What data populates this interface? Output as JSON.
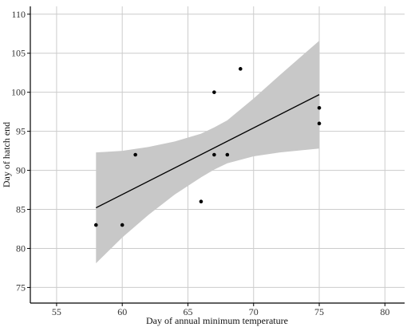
{
  "chart_data": {
    "type": "scatter",
    "title": "",
    "xlabel": "Day of annual minimum temperature",
    "ylabel": "Day of hatch end",
    "xlim": [
      53,
      81.5
    ],
    "ylim": [
      73,
      111
    ],
    "xticks": [
      55,
      60,
      65,
      70,
      75,
      80
    ],
    "yticks": [
      75,
      80,
      85,
      90,
      95,
      100,
      105,
      110
    ],
    "grid": true,
    "points": [
      {
        "x": 58,
        "y": 83
      },
      {
        "x": 60,
        "y": 83
      },
      {
        "x": 61,
        "y": 92
      },
      {
        "x": 66,
        "y": 86
      },
      {
        "x": 67,
        "y": 100
      },
      {
        "x": 67,
        "y": 92
      },
      {
        "x": 68,
        "y": 92
      },
      {
        "x": 69,
        "y": 103
      },
      {
        "x": 75,
        "y": 98
      },
      {
        "x": 75,
        "y": 96
      }
    ],
    "fit_line": {
      "x": [
        58,
        75
      ],
      "y": [
        85.2,
        99.7
      ]
    },
    "confidence_band": {
      "x": [
        58,
        60,
        62,
        64,
        66,
        67,
        68,
        70,
        72,
        75
      ],
      "lower": [
        78.1,
        81.4,
        84.3,
        86.9,
        89.1,
        90.1,
        90.9,
        91.8,
        92.3,
        92.8
      ],
      "upper": [
        92.3,
        92.5,
        93.0,
        93.7,
        94.7,
        95.5,
        96.4,
        99.2,
        102.2,
        106.6
      ]
    },
    "colors": {
      "points": "#000000",
      "line": "#000000",
      "band": "#c8c8c8",
      "axis": "#000000"
    }
  }
}
